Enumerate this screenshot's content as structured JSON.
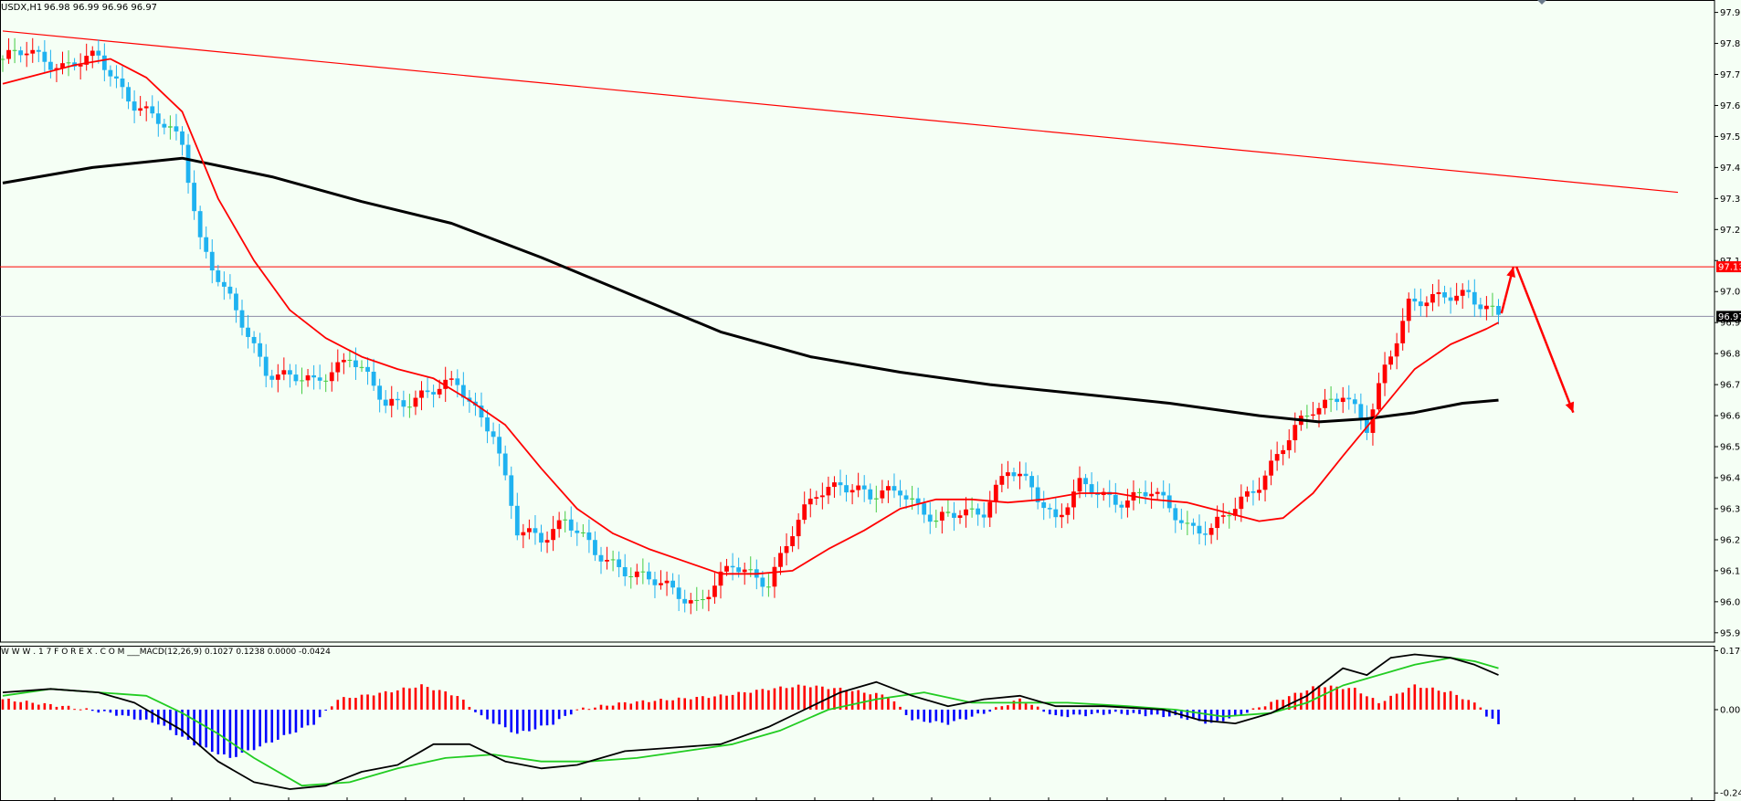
{
  "header": {
    "symbol": "USDX,H1",
    "ohlc": "96.98 96.99 96.96 96.97"
  },
  "indicator_header": "W W W . 1 7 F O R E X . C O M ___MACD(12,26,9) 0.1027 0.1238 0.0000 -0.0424",
  "colors": {
    "background": "#f5fff5",
    "bull_candle": "#ff0000",
    "bear_candle": "#1fb2f0",
    "doji": "#44cc44",
    "ma_fast": "#ff0000",
    "ma_slow": "#000000",
    "trendline": "#ff0000",
    "resistance": "#ff0000",
    "current_price_line": "#8c8ca6",
    "macd_pos": "#ff0000",
    "macd_neg": "#0000ff",
    "macd_line": "#000000",
    "signal_line": "#22cc22"
  },
  "chart_data": [
    {
      "type": "candlestick",
      "title": "USDX,H1",
      "y_ticks": [
        "97.95",
        "97.85",
        "97.75",
        "97.65",
        "97.55",
        "97.45",
        "97.35",
        "97.25",
        "97.15",
        "97.05",
        "96.95",
        "96.85",
        "96.75",
        "96.65",
        "96.55",
        "96.45",
        "96.35",
        "96.25",
        "96.15",
        "96.05",
        "95.95"
      ],
      "ylim": [
        95.92,
        97.99
      ],
      "x_bar_range": [
        0,
        250
      ],
      "resistance_label": "97.13",
      "resistance_value": 97.13,
      "current_price_label": "96.97",
      "current_price_value": 96.97,
      "trendline": {
        "start": {
          "bar": 0,
          "value": 97.89
        },
        "end": {
          "bar": 280,
          "value": 97.37
        }
      },
      "forecast_arrows": [
        {
          "from": {
            "bar": 250.5,
            "value": 96.98
          },
          "to": {
            "bar": 252.5,
            "value": 97.13
          }
        },
        {
          "from": {
            "bar": 253,
            "value": 97.13
          },
          "to": {
            "bar": 262.5,
            "value": 96.66
          }
        }
      ],
      "anchors": [
        [
          0,
          97.8
        ],
        [
          4,
          97.82
        ],
        [
          10,
          97.78
        ],
        [
          16,
          97.8
        ],
        [
          22,
          97.66
        ],
        [
          30,
          97.53
        ],
        [
          33,
          97.22
        ],
        [
          37,
          97.05
        ],
        [
          44,
          96.8
        ],
        [
          52,
          96.75
        ],
        [
          58,
          96.85
        ],
        [
          64,
          96.68
        ],
        [
          70,
          96.72
        ],
        [
          76,
          96.75
        ],
        [
          82,
          96.6
        ],
        [
          86,
          96.27
        ],
        [
          90,
          96.26
        ],
        [
          94,
          96.32
        ],
        [
          99,
          96.2
        ],
        [
          104,
          96.16
        ],
        [
          110,
          96.1
        ],
        [
          116,
          96.05
        ],
        [
          122,
          96.16
        ],
        [
          128,
          96.12
        ],
        [
          132,
          96.27
        ],
        [
          136,
          96.4
        ],
        [
          140,
          96.44
        ],
        [
          145,
          96.38
        ],
        [
          150,
          96.42
        ],
        [
          156,
          96.3
        ],
        [
          160,
          96.34
        ],
        [
          164,
          96.35
        ],
        [
          168,
          96.47
        ],
        [
          172,
          96.42
        ],
        [
          176,
          96.32
        ],
        [
          180,
          96.42
        ],
        [
          186,
          96.38
        ],
        [
          192,
          96.4
        ],
        [
          198,
          96.3
        ],
        [
          202,
          96.28
        ],
        [
          206,
          96.35
        ],
        [
          210,
          96.44
        ],
        [
          214,
          96.55
        ],
        [
          219,
          96.67
        ],
        [
          224,
          96.73
        ],
        [
          228,
          96.6
        ],
        [
          231,
          96.8
        ],
        [
          235,
          97.02
        ],
        [
          240,
          97.02
        ],
        [
          245,
          97.05
        ],
        [
          250,
          96.97
        ]
      ],
      "fast_ma": [
        [
          0,
          97.72
        ],
        [
          6,
          97.75
        ],
        [
          12,
          97.78
        ],
        [
          18,
          97.8
        ],
        [
          24,
          97.74
        ],
        [
          30,
          97.63
        ],
        [
          36,
          97.35
        ],
        [
          42,
          97.15
        ],
        [
          48,
          96.99
        ],
        [
          54,
          96.9
        ],
        [
          60,
          96.84
        ],
        [
          66,
          96.8
        ],
        [
          72,
          96.77
        ],
        [
          78,
          96.7
        ],
        [
          84,
          96.62
        ],
        [
          90,
          96.48
        ],
        [
          96,
          96.35
        ],
        [
          102,
          96.27
        ],
        [
          108,
          96.22
        ],
        [
          114,
          96.18
        ],
        [
          120,
          96.14
        ],
        [
          126,
          96.14
        ],
        [
          132,
          96.15
        ],
        [
          138,
          96.22
        ],
        [
          144,
          96.28
        ],
        [
          150,
          96.35
        ],
        [
          156,
          96.38
        ],
        [
          162,
          96.38
        ],
        [
          168,
          96.37
        ],
        [
          174,
          96.38
        ],
        [
          180,
          96.4
        ],
        [
          186,
          96.4
        ],
        [
          192,
          96.38
        ],
        [
          198,
          96.37
        ],
        [
          204,
          96.34
        ],
        [
          210,
          96.31
        ],
        [
          214,
          96.32
        ],
        [
          219,
          96.4
        ],
        [
          224,
          96.52
        ],
        [
          230,
          96.66
        ],
        [
          236,
          96.8
        ],
        [
          242,
          96.88
        ],
        [
          248,
          96.93
        ],
        [
          250,
          96.95
        ]
      ],
      "slow_ma": [
        [
          0,
          97.4
        ],
        [
          15,
          97.45
        ],
        [
          30,
          97.48
        ],
        [
          45,
          97.42
        ],
        [
          60,
          97.34
        ],
        [
          75,
          97.27
        ],
        [
          90,
          97.16
        ],
        [
          105,
          97.04
        ],
        [
          120,
          96.92
        ],
        [
          135,
          96.84
        ],
        [
          150,
          96.79
        ],
        [
          165,
          96.75
        ],
        [
          180,
          96.72
        ],
        [
          195,
          96.69
        ],
        [
          210,
          96.65
        ],
        [
          220,
          96.63
        ],
        [
          228,
          96.64
        ],
        [
          236,
          96.66
        ],
        [
          244,
          96.69
        ],
        [
          250,
          96.7
        ]
      ]
    },
    {
      "type": "macd",
      "title": "MACD(12,26,9)",
      "y_ticks": [
        "0.1707",
        "0.00",
        "-0.2412"
      ],
      "ylim": [
        -0.2645,
        0.185
      ],
      "macd_value": 0.1027,
      "signal_value": 0.1238,
      "histogram_anchors": [
        [
          0,
          0.03
        ],
        [
          10,
          0.01
        ],
        [
          18,
          -0.01
        ],
        [
          26,
          -0.04
        ],
        [
          32,
          -0.1
        ],
        [
          38,
          -0.14
        ],
        [
          44,
          -0.1
        ],
        [
          52,
          -0.04
        ],
        [
          56,
          0.03
        ],
        [
          64,
          0.05
        ],
        [
          70,
          0.07
        ],
        [
          76,
          0.04
        ],
        [
          80,
          -0.02
        ],
        [
          86,
          -0.07
        ],
        [
          92,
          -0.04
        ],
        [
          96,
          0.0
        ],
        [
          104,
          0.02
        ],
        [
          112,
          0.03
        ],
        [
          120,
          0.04
        ],
        [
          128,
          0.06
        ],
        [
          134,
          0.07
        ],
        [
          140,
          0.06
        ],
        [
          148,
          0.04
        ],
        [
          152,
          -0.03
        ],
        [
          158,
          -0.04
        ],
        [
          164,
          -0.01
        ],
        [
          170,
          0.03
        ],
        [
          176,
          -0.02
        ],
        [
          186,
          -0.01
        ],
        [
          196,
          -0.02
        ],
        [
          202,
          -0.04
        ],
        [
          206,
          -0.02
        ],
        [
          212,
          0.02
        ],
        [
          220,
          0.07
        ],
        [
          226,
          0.06
        ],
        [
          230,
          0.02
        ],
        [
          236,
          0.07
        ],
        [
          242,
          0.05
        ],
        [
          247,
          0.01
        ],
        [
          248,
          -0.02
        ],
        [
          250,
          -0.04
        ]
      ],
      "macd_line": [
        [
          0,
          0.05
        ],
        [
          8,
          0.06
        ],
        [
          16,
          0.05
        ],
        [
          22,
          0.02
        ],
        [
          30,
          -0.06
        ],
        [
          36,
          -0.15
        ],
        [
          42,
          -0.21
        ],
        [
          48,
          -0.23
        ],
        [
          54,
          -0.22
        ],
        [
          60,
          -0.18
        ],
        [
          66,
          -0.16
        ],
        [
          72,
          -0.1
        ],
        [
          78,
          -0.1
        ],
        [
          84,
          -0.15
        ],
        [
          90,
          -0.17
        ],
        [
          96,
          -0.16
        ],
        [
          104,
          -0.12
        ],
        [
          112,
          -0.11
        ],
        [
          120,
          -0.1
        ],
        [
          128,
          -0.05
        ],
        [
          134,
          0.0
        ],
        [
          140,
          0.05
        ],
        [
          146,
          0.08
        ],
        [
          152,
          0.04
        ],
        [
          158,
          0.01
        ],
        [
          164,
          0.03
        ],
        [
          170,
          0.04
        ],
        [
          176,
          0.01
        ],
        [
          184,
          0.01
        ],
        [
          194,
          0.0
        ],
        [
          200,
          -0.03
        ],
        [
          206,
          -0.04
        ],
        [
          212,
          -0.01
        ],
        [
          218,
          0.04
        ],
        [
          224,
          0.12
        ],
        [
          228,
          0.1
        ],
        [
          232,
          0.15
        ],
        [
          236,
          0.16
        ],
        [
          242,
          0.15
        ],
        [
          246,
          0.13
        ],
        [
          250,
          0.1
        ]
      ],
      "signal_line": [
        [
          0,
          0.04
        ],
        [
          8,
          0.06
        ],
        [
          16,
          0.05
        ],
        [
          24,
          0.04
        ],
        [
          30,
          -0.01
        ],
        [
          36,
          -0.07
        ],
        [
          42,
          -0.14
        ],
        [
          50,
          -0.22
        ],
        [
          58,
          -0.21
        ],
        [
          66,
          -0.17
        ],
        [
          74,
          -0.14
        ],
        [
          82,
          -0.13
        ],
        [
          90,
          -0.15
        ],
        [
          98,
          -0.15
        ],
        [
          106,
          -0.14
        ],
        [
          114,
          -0.12
        ],
        [
          122,
          -0.1
        ],
        [
          130,
          -0.06
        ],
        [
          138,
          0.0
        ],
        [
          146,
          0.03
        ],
        [
          154,
          0.05
        ],
        [
          162,
          0.02
        ],
        [
          170,
          0.02
        ],
        [
          178,
          0.02
        ],
        [
          188,
          0.01
        ],
        [
          196,
          0.0
        ],
        [
          204,
          -0.02
        ],
        [
          212,
          -0.01
        ],
        [
          218,
          0.02
        ],
        [
          224,
          0.07
        ],
        [
          230,
          0.1
        ],
        [
          236,
          0.13
        ],
        [
          242,
          0.15
        ],
        [
          246,
          0.14
        ],
        [
          250,
          0.12
        ]
      ]
    }
  ]
}
